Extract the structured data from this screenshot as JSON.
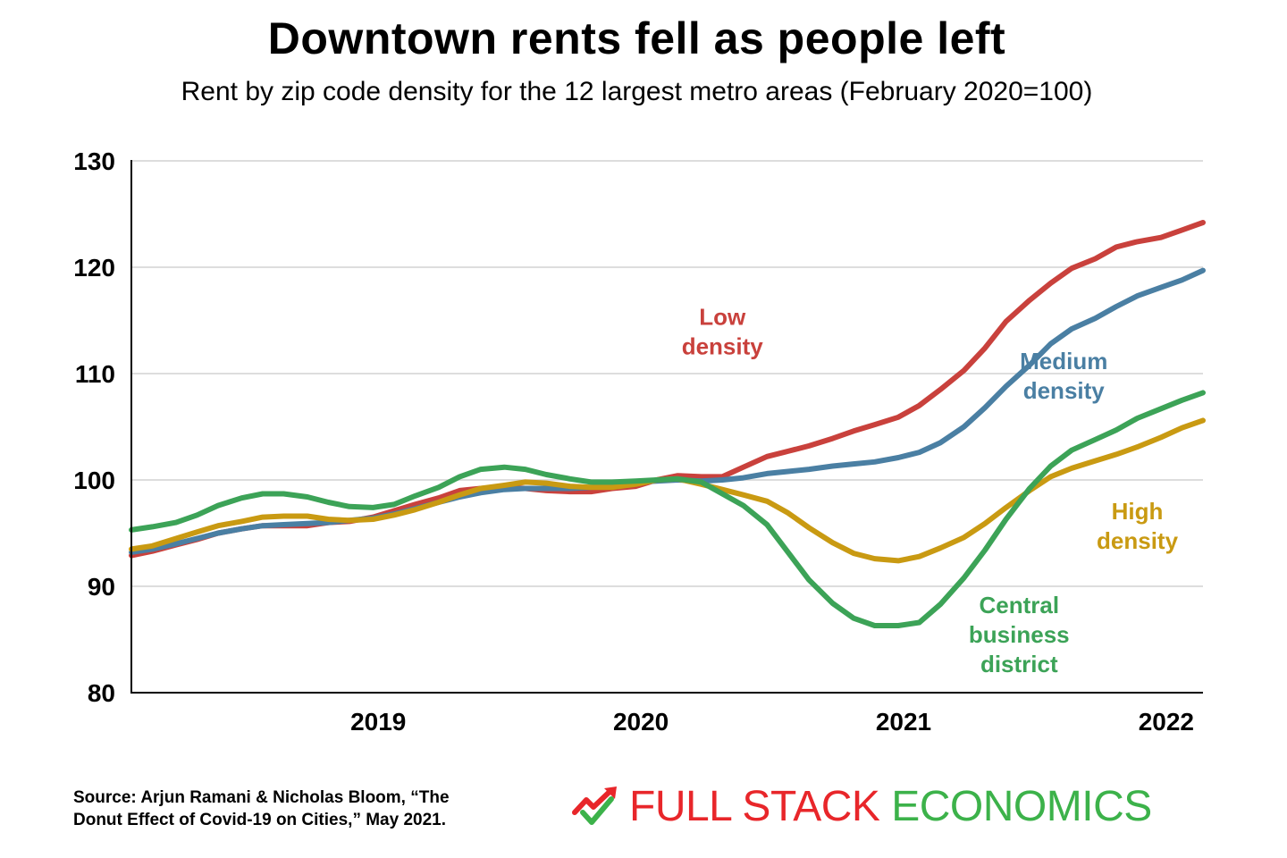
{
  "chart_data": {
    "type": "line",
    "title": "Downtown rents fell as people left",
    "subtitle": "Rent by zip code density for the 12 largest metro areas (February 2020=100)",
    "xlabel": "",
    "ylabel": "",
    "xlim": [
      2018.06,
      2022.14
    ],
    "ylim": [
      80,
      130
    ],
    "yticks": [
      80,
      90,
      100,
      110,
      120,
      130
    ],
    "xticks": [
      {
        "value": 2019.0,
        "label": "2019"
      },
      {
        "value": 2020.0,
        "label": "2020"
      },
      {
        "value": 2021.0,
        "label": "2021"
      },
      {
        "value": 2022.0,
        "label": "2022"
      }
    ],
    "grid": true,
    "series": [
      {
        "name": "Low density",
        "label_lines": [
          "Low",
          "density"
        ],
        "label_at": [
          2020.31,
          114.6
        ],
        "color": "#c9413c",
        "x": [
          2018.06,
          2018.14,
          2018.23,
          2018.31,
          2018.39,
          2018.48,
          2018.56,
          2018.64,
          2018.73,
          2018.81,
          2018.89,
          2018.98,
          2019.06,
          2019.14,
          2019.23,
          2019.31,
          2019.39,
          2019.48,
          2019.56,
          2019.64,
          2019.73,
          2019.81,
          2019.89,
          2019.98,
          2020.06,
          2020.14,
          2020.23,
          2020.31,
          2020.39,
          2020.48,
          2020.56,
          2020.64,
          2020.73,
          2020.81,
          2020.89,
          2020.98,
          2021.06,
          2021.14,
          2021.23,
          2021.31,
          2021.39,
          2021.48,
          2021.56,
          2021.64,
          2021.73,
          2021.81,
          2021.89,
          2021.98,
          2022.06,
          2022.14
        ],
        "values": [
          92.9,
          93.3,
          93.9,
          94.4,
          95.0,
          95.4,
          95.7,
          95.7,
          95.7,
          96.0,
          96.1,
          96.5,
          97.1,
          97.7,
          98.3,
          99.0,
          99.2,
          99.3,
          99.2,
          99.0,
          98.9,
          98.9,
          99.2,
          99.4,
          100.0,
          100.4,
          100.3,
          100.3,
          101.2,
          102.2,
          102.7,
          103.2,
          103.9,
          104.6,
          105.2,
          105.9,
          107.0,
          108.5,
          110.3,
          112.4,
          114.9,
          116.9,
          118.5,
          119.9,
          120.8,
          121.9,
          122.4,
          122.8,
          123.5,
          124.2
        ]
      },
      {
        "name": "Medium density",
        "label_lines": [
          "Medium",
          "density"
        ],
        "label_at": [
          2021.61,
          110.4
        ],
        "color": "#4a7fa3",
        "x": [
          2018.06,
          2018.14,
          2018.23,
          2018.31,
          2018.39,
          2018.48,
          2018.56,
          2018.64,
          2018.73,
          2018.81,
          2018.89,
          2018.98,
          2019.06,
          2019.14,
          2019.23,
          2019.31,
          2019.39,
          2019.48,
          2019.56,
          2019.64,
          2019.73,
          2019.81,
          2019.89,
          2019.98,
          2020.06,
          2020.14,
          2020.23,
          2020.31,
          2020.39,
          2020.48,
          2020.56,
          2020.64,
          2020.73,
          2020.81,
          2020.89,
          2020.98,
          2021.06,
          2021.14,
          2021.23,
          2021.31,
          2021.39,
          2021.48,
          2021.56,
          2021.64,
          2021.73,
          2021.81,
          2021.89,
          2021.98,
          2022.06,
          2022.14
        ],
        "values": [
          93.2,
          93.5,
          94.0,
          94.5,
          95.0,
          95.4,
          95.7,
          95.8,
          95.9,
          96.0,
          96.2,
          96.4,
          96.8,
          97.3,
          97.9,
          98.4,
          98.8,
          99.1,
          99.2,
          99.2,
          99.2,
          99.3,
          99.6,
          99.8,
          99.9,
          100.0,
          99.9,
          100.0,
          100.2,
          100.6,
          100.8,
          101.0,
          101.3,
          101.5,
          101.7,
          102.1,
          102.6,
          103.5,
          105.0,
          106.8,
          108.8,
          110.8,
          112.8,
          114.2,
          115.2,
          116.3,
          117.3,
          118.1,
          118.8,
          119.7
        ]
      },
      {
        "name": "High density",
        "label_lines": [
          "High",
          "density"
        ],
        "label_at": [
          2021.89,
          96.3
        ],
        "color": "#c99a12",
        "x": [
          2018.06,
          2018.14,
          2018.23,
          2018.31,
          2018.39,
          2018.48,
          2018.56,
          2018.64,
          2018.73,
          2018.81,
          2018.89,
          2018.98,
          2019.06,
          2019.14,
          2019.23,
          2019.31,
          2019.39,
          2019.48,
          2019.56,
          2019.64,
          2019.73,
          2019.81,
          2019.89,
          2019.98,
          2020.06,
          2020.14,
          2020.23,
          2020.31,
          2020.39,
          2020.48,
          2020.56,
          2020.64,
          2020.73,
          2020.81,
          2020.89,
          2020.98,
          2021.06,
          2021.14,
          2021.23,
          2021.31,
          2021.39,
          2021.48,
          2021.56,
          2021.64,
          2021.73,
          2021.81,
          2021.89,
          2021.98,
          2022.06,
          2022.14
        ],
        "values": [
          93.5,
          93.8,
          94.5,
          95.1,
          95.7,
          96.1,
          96.5,
          96.6,
          96.6,
          96.3,
          96.2,
          96.3,
          96.7,
          97.2,
          97.9,
          98.6,
          99.2,
          99.5,
          99.8,
          99.7,
          99.4,
          99.3,
          99.3,
          99.6,
          100.0,
          100.1,
          99.6,
          99.1,
          98.6,
          98.0,
          96.9,
          95.5,
          94.1,
          93.1,
          92.6,
          92.4,
          92.8,
          93.6,
          94.6,
          95.9,
          97.4,
          99.0,
          100.3,
          101.1,
          101.8,
          102.4,
          103.1,
          104.0,
          104.9,
          105.6
        ]
      },
      {
        "name": "Central business district",
        "label_lines": [
          "Central",
          "business",
          "district"
        ],
        "label_at": [
          2021.44,
          87.5
        ],
        "color": "#3ca357",
        "x": [
          2018.06,
          2018.14,
          2018.23,
          2018.31,
          2018.39,
          2018.48,
          2018.56,
          2018.64,
          2018.73,
          2018.81,
          2018.89,
          2018.98,
          2019.06,
          2019.14,
          2019.23,
          2019.31,
          2019.39,
          2019.48,
          2019.56,
          2019.64,
          2019.73,
          2019.81,
          2019.89,
          2019.98,
          2020.06,
          2020.14,
          2020.23,
          2020.31,
          2020.39,
          2020.48,
          2020.56,
          2020.64,
          2020.73,
          2020.81,
          2020.89,
          2020.98,
          2021.06,
          2021.14,
          2021.23,
          2021.31,
          2021.39,
          2021.48,
          2021.56,
          2021.64,
          2021.73,
          2021.81,
          2021.89,
          2021.98,
          2022.06,
          2022.14
        ],
        "values": [
          95.3,
          95.6,
          96.0,
          96.7,
          97.6,
          98.3,
          98.7,
          98.7,
          98.4,
          97.9,
          97.5,
          97.4,
          97.7,
          98.5,
          99.3,
          100.3,
          101.0,
          101.2,
          101.0,
          100.5,
          100.1,
          99.8,
          99.8,
          99.9,
          100.0,
          100.1,
          99.8,
          98.7,
          97.6,
          95.8,
          93.2,
          90.6,
          88.4,
          87.0,
          86.3,
          86.3,
          86.6,
          88.3,
          90.8,
          93.4,
          96.3,
          99.2,
          101.3,
          102.8,
          103.8,
          104.7,
          105.8,
          106.7,
          107.5,
          108.2
        ]
      }
    ]
  },
  "footer": {
    "source_line1": "Source: Arjun Ramani & Nicholas Bloom, “The",
    "source_line2": "Donut Effect of Covid-19 on Cities,” May 2021.",
    "logo_word1": "FULL STACK",
    "logo_word2": "ECONOMICS"
  }
}
